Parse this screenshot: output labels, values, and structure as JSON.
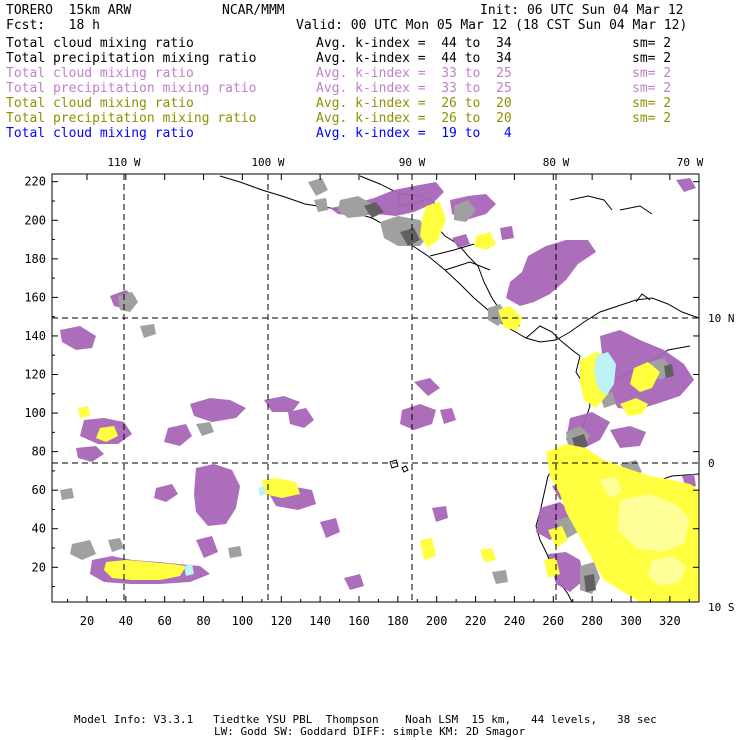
{
  "header": {
    "model": "TORERO  15km ARW",
    "org": "NCAR/MMM",
    "init": "Init: 06 UTC Sun 04 Mar 12",
    "fcst": "Fcst:   18 h",
    "valid": "Valid: 00 UTC Mon 05 Mar 12 (18 CST Sun 04 Mar 12)"
  },
  "legend": [
    {
      "label": "Total cloud mixing ratio",
      "kindex": "Avg. k-index =  44 to  34",
      "sm": "sm= 2",
      "color": "#000000"
    },
    {
      "label": "Total precipitation mixing ratio",
      "kindex": "Avg. k-index =  44 to  34",
      "sm": "sm= 2",
      "color": "#000000"
    },
    {
      "label": "Total cloud mixing ratio",
      "kindex": "Avg. k-index =  33 to  25",
      "sm": "sm= 2",
      "color": "#c080c8"
    },
    {
      "label": "Total precipitation mixing ratio",
      "kindex": "Avg. k-index =  33 to  25",
      "sm": "sm= 2",
      "color": "#c080c8"
    },
    {
      "label": "Total cloud mixing ratio",
      "kindex": "Avg. k-index =  26 to  20",
      "sm": "sm= 2",
      "color": "#909000"
    },
    {
      "label": "Total precipitation mixing ratio",
      "kindex": "Avg. k-index =  26 to  20",
      "sm": "sm= 2",
      "color": "#909000"
    },
    {
      "label": "Total cloud mixing ratio",
      "kindex": "Avg. k-index =  19 to   4",
      "sm": "",
      "color": "#0000ff"
    }
  ],
  "map": {
    "lon_labels": [
      "110 W",
      "100 W",
      "90 W",
      "80 W",
      "70 W"
    ],
    "lat_labels": [
      "10 N",
      "0",
      "10 S"
    ],
    "x_ticks": [
      "20",
      "40",
      "60",
      "80",
      "100",
      "120",
      "140",
      "160",
      "180",
      "200",
      "220",
      "240",
      "260",
      "280",
      "300",
      "320"
    ],
    "y_ticks": [
      "20",
      "40",
      "60",
      "80",
      "100",
      "120",
      "140",
      "160",
      "180",
      "200",
      "220"
    ],
    "colors": {
      "purple": "#a866b8",
      "gray": "#a0a0a0",
      "darkgray": "#606060",
      "yellow": "#ffff40",
      "lightyellow": "#ffff99",
      "cyan": "#bdf2f7"
    }
  },
  "footer": {
    "line1": "Model Info: V3.3.1   Tiedtke YSU PBL  Thompson    Noah LSM  15 km,   44 levels,   38 sec",
    "line2": "LW: Godd SW: Goddard DIFF: simple KM: 2D Smagor"
  }
}
